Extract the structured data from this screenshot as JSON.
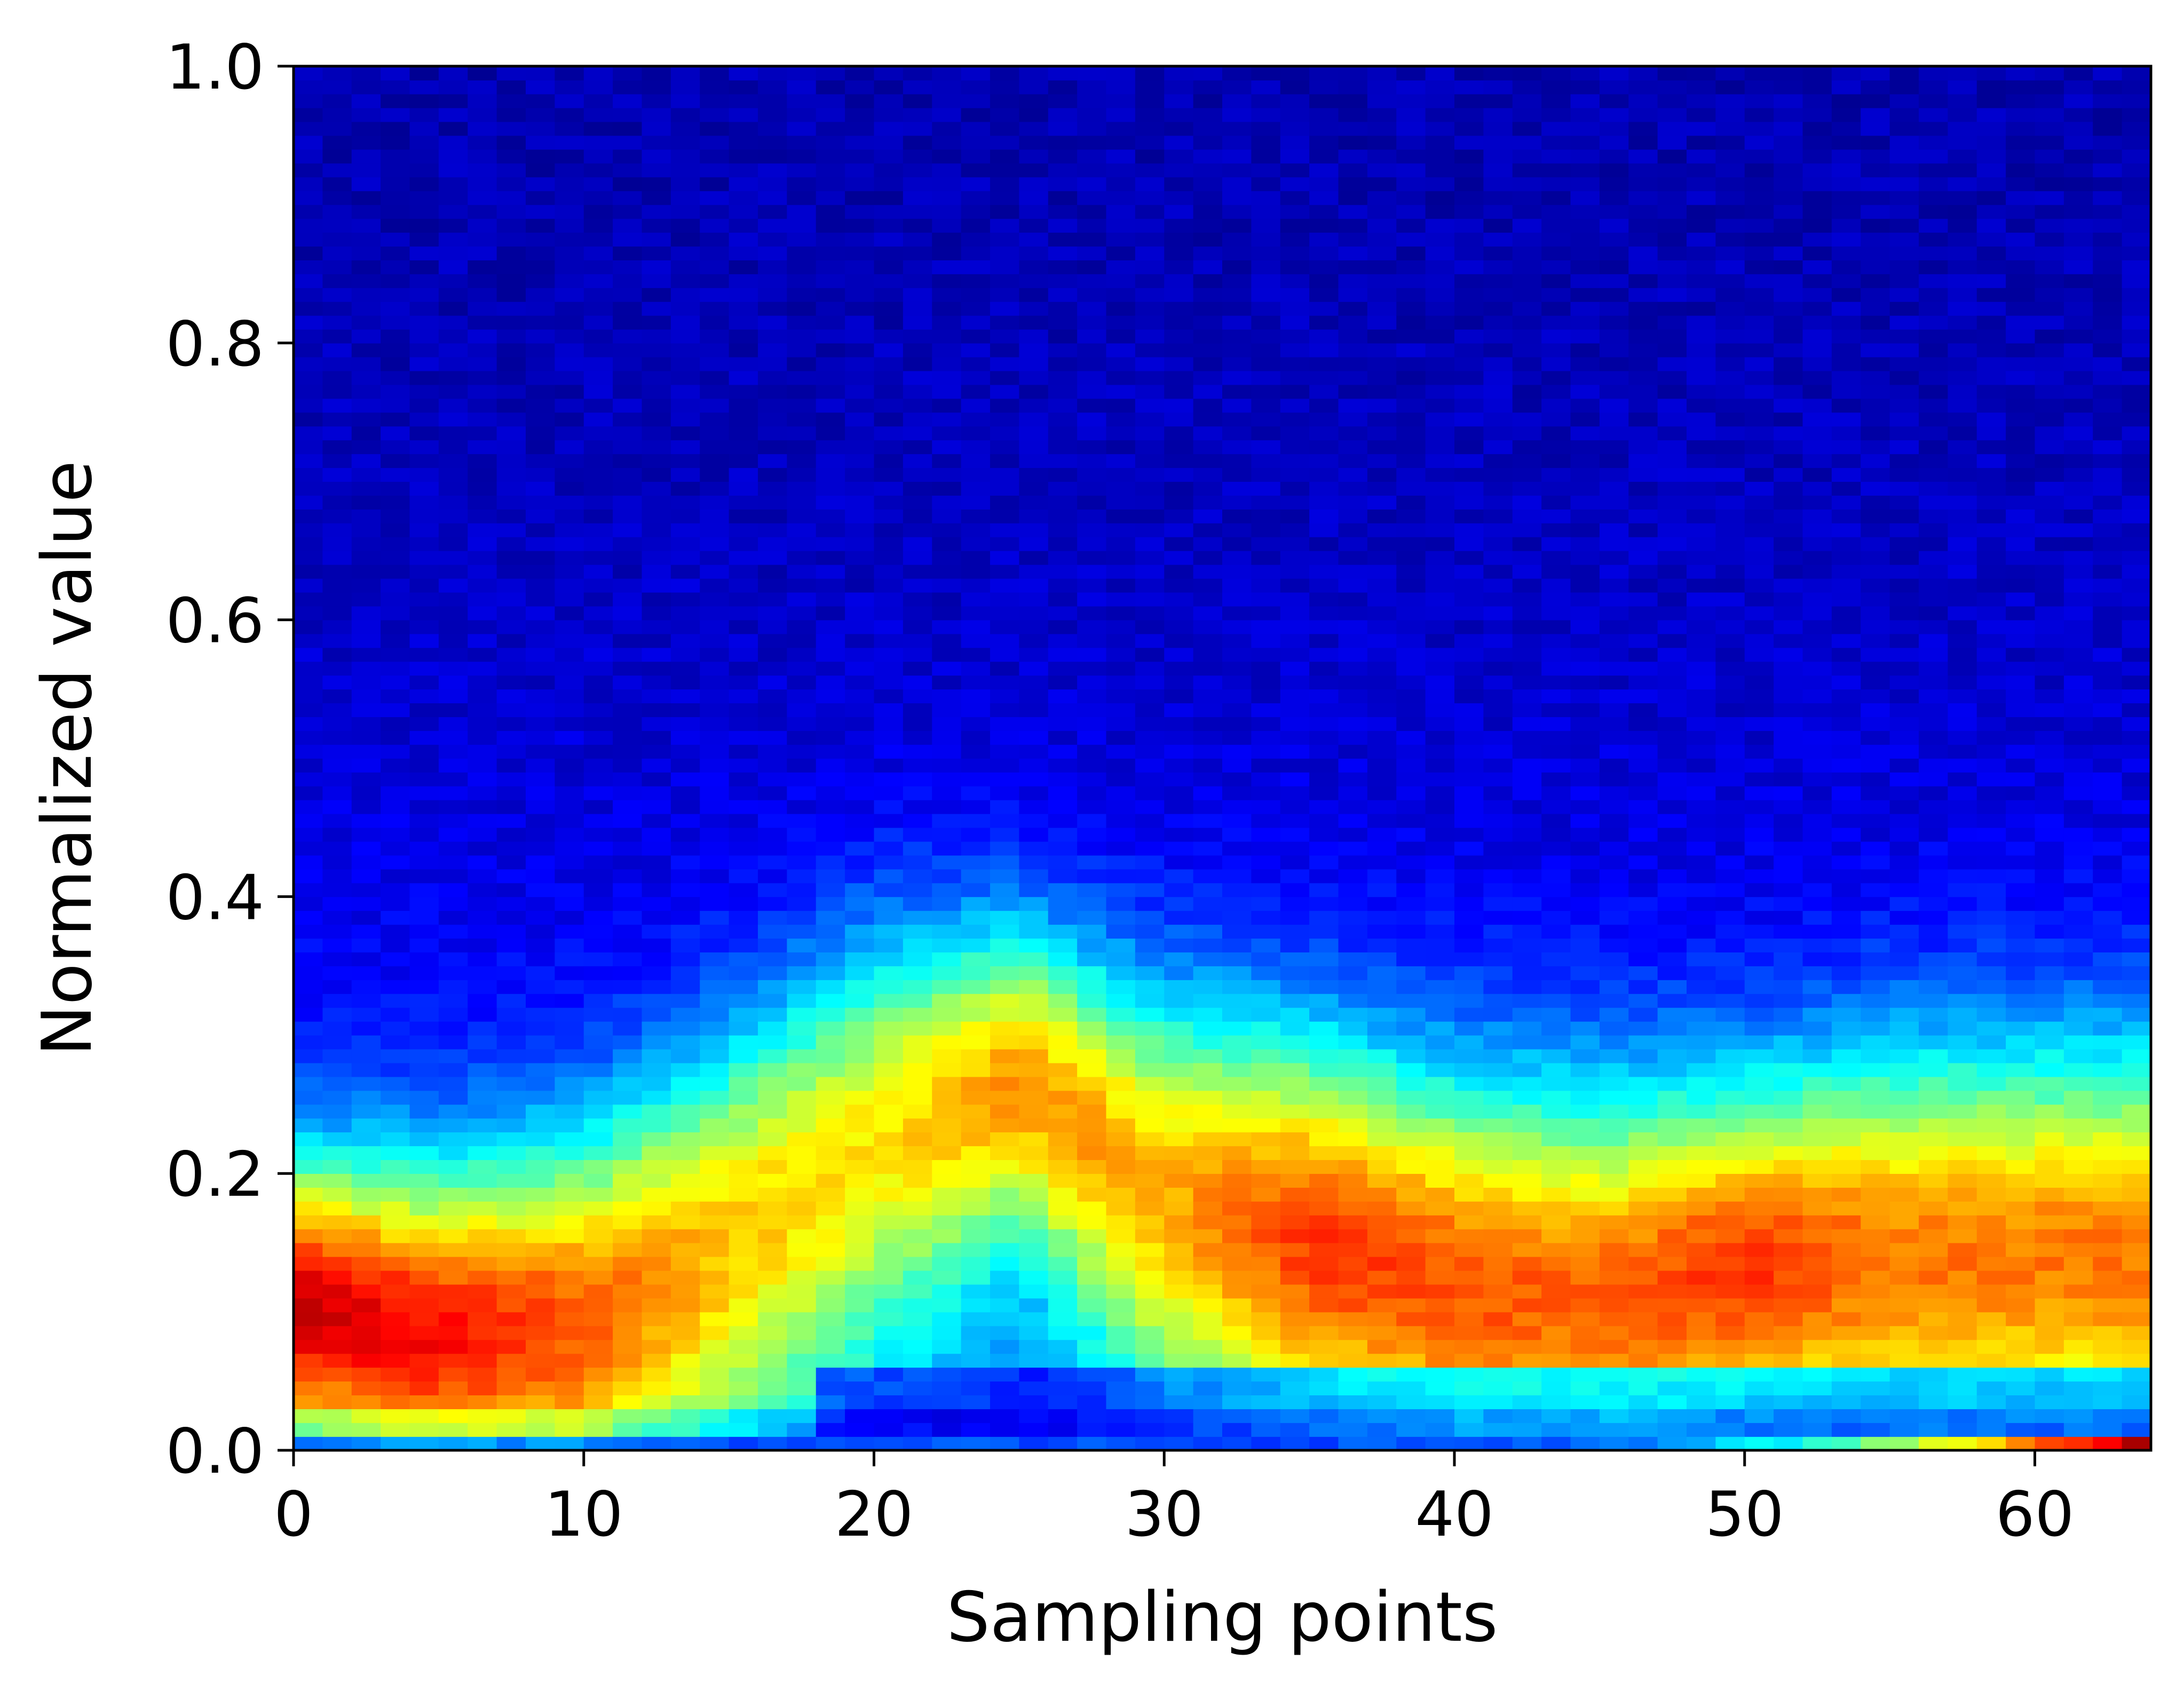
{
  "chart_data": {
    "type": "heatmap",
    "title": "",
    "xlabel": "Sampling points",
    "ylabel": "Normalized value",
    "xlim": [
      0,
      64
    ],
    "ylim": [
      0,
      1
    ],
    "x_ticks": [
      0,
      10,
      20,
      30,
      40,
      50,
      60
    ],
    "y_ticks": [
      0.0,
      0.2,
      0.4,
      0.6,
      0.8,
      1.0
    ],
    "x_tick_labels": [
      "0",
      "10",
      "20",
      "30",
      "40",
      "50",
      "60"
    ],
    "y_tick_labels": [
      "0.0",
      "0.2",
      "0.4",
      "0.6",
      "0.8",
      "1.0"
    ],
    "grid": false,
    "legend": "none",
    "colormap": "jet",
    "x_bins": 64,
    "y_bins": 100,
    "band_profile": {
      "description_units": "normalized value",
      "sampling_points": [
        0,
        5,
        10,
        15,
        20,
        25,
        30,
        35,
        40,
        45,
        50,
        55,
        60,
        64
      ],
      "high_density_center": [
        0.11,
        0.09,
        0.1,
        0.16,
        0.23,
        0.27,
        0.19,
        0.16,
        0.13,
        0.12,
        0.14,
        0.15,
        0.15,
        0.15
      ],
      "high_density_halfwidth": [
        0.07,
        0.08,
        0.09,
        0.1,
        0.1,
        0.08,
        0.1,
        0.1,
        0.1,
        0.1,
        0.09,
        0.1,
        0.1,
        0.1
      ],
      "band_peak_intensity": [
        0.7,
        0.62,
        0.55,
        0.48,
        0.48,
        0.58,
        0.52,
        0.62,
        0.58,
        0.55,
        0.62,
        0.55,
        0.55,
        0.55
      ]
    },
    "hot_spots": [
      {
        "x": 1,
        "y": 0.105,
        "intensity": 0.78
      },
      {
        "x": 1.5,
        "y": 0.085,
        "intensity": 0.82
      },
      {
        "x": 36,
        "y": 0.165,
        "intensity": 0.72
      },
      {
        "x": 37,
        "y": 0.145,
        "intensity": 0.78
      },
      {
        "x": 51,
        "y": 0.17,
        "intensity": 0.68
      }
    ],
    "bottom_row": {
      "y_bin": [
        0.0,
        0.01
      ],
      "note": "intensity rises sharply toward the right end",
      "x_start_intensity": 0.2,
      "x_end_intensity": 1.0
    }
  }
}
